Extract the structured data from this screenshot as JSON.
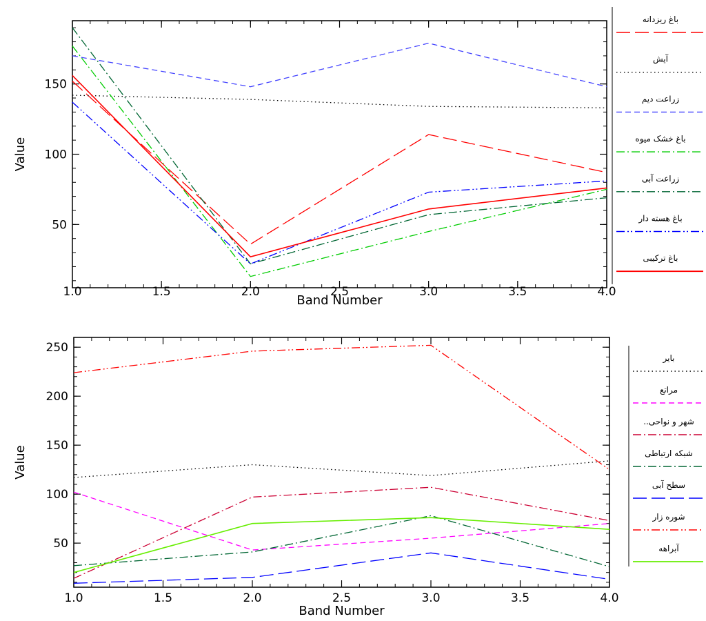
{
  "chart_data": [
    {
      "type": "line",
      "title": "",
      "xlabel": "Band Number",
      "ylabel": "Value",
      "xlim": [
        1.0,
        4.0
      ],
      "ylim": [
        5,
        195
      ],
      "xticks": [
        1.0,
        1.5,
        2.0,
        2.5,
        3.0,
        3.5,
        4.0
      ],
      "xtick_labels": [
        "1.0",
        "1.5",
        "2.0",
        "2.5",
        "3.0",
        "3.5",
        "4.0"
      ],
      "yticks": [
        50,
        100,
        150
      ],
      "ytick_labels": [
        "50",
        "100",
        "150"
      ],
      "grid": false,
      "legend_position": "right",
      "x": [
        1,
        2,
        3,
        4
      ],
      "series": [
        {
          "name": "باغ ریزدانه",
          "color": "#ff0000",
          "dash": "long-dash",
          "values": [
            152,
            36,
            114,
            87
          ]
        },
        {
          "name": "آیش",
          "color": "#000000",
          "dash": "dotted",
          "values": [
            142,
            139,
            134,
            133
          ]
        },
        {
          "name": "زراعت دیم",
          "color": "#4444ff",
          "dash": "dashed",
          "values": [
            170,
            148,
            179,
            148
          ]
        },
        {
          "name": "باغ خشک میوه",
          "color": "#00cc00",
          "dash": "dash-dot",
          "values": [
            177,
            13,
            45,
            75
          ]
        },
        {
          "name": "زراعت آبی",
          "color": "#006633",
          "dash": "dash-dot",
          "values": [
            190,
            22,
            57,
            69
          ]
        },
        {
          "name": "باغ هسته دار",
          "color": "#0000ff",
          "dash": "dash-dot-dot",
          "values": [
            137,
            22,
            73,
            81
          ]
        },
        {
          "name": "باغ ترکیبی",
          "color": "#ff0000",
          "dash": "solid",
          "values": [
            156,
            27,
            61,
            76
          ]
        }
      ]
    },
    {
      "type": "line",
      "title": "",
      "xlabel": "Band Number",
      "ylabel": "Value",
      "xlim": [
        1.0,
        4.0
      ],
      "ylim": [
        5,
        260
      ],
      "xticks": [
        1.0,
        1.5,
        2.0,
        2.5,
        3.0,
        3.5,
        4.0
      ],
      "xtick_labels": [
        "1.0",
        "1.5",
        "2.0",
        "2.5",
        "3.0",
        "3.5",
        "4.0"
      ],
      "yticks": [
        50,
        100,
        150,
        200,
        250
      ],
      "ytick_labels": [
        "50",
        "100",
        "150",
        "200",
        "250"
      ],
      "grid": false,
      "legend_position": "right",
      "x": [
        1,
        2,
        3,
        4
      ],
      "series": [
        {
          "name": "بایر",
          "color": "#000000",
          "dash": "dotted",
          "values": [
            117,
            130,
            119,
            134
          ]
        },
        {
          "name": "مراتع",
          "color": "#ff00ff",
          "dash": "dashed",
          "values": [
            102,
            43,
            55,
            70
          ]
        },
        {
          "name": "شهر و نواحی..",
          "color": "#cc0033",
          "dash": "dash-dot",
          "values": [
            14,
            97,
            107,
            73
          ]
        },
        {
          "name": "شبکه ارتباطی",
          "color": "#006633",
          "dash": "dash-dot",
          "values": [
            27,
            41,
            78,
            26
          ]
        },
        {
          "name": "سطح آبی",
          "color": "#0000ff",
          "dash": "long-dash",
          "values": [
            9,
            15,
            40,
            13
          ]
        },
        {
          "name": "شوره زار",
          "color": "#ff0000",
          "dash": "dash-dot-dot",
          "values": [
            224,
            246,
            252,
            125
          ]
        },
        {
          "name": "آبراهه",
          "color": "#66ee00",
          "dash": "solid",
          "values": [
            20,
            70,
            76,
            64
          ]
        }
      ]
    }
  ]
}
